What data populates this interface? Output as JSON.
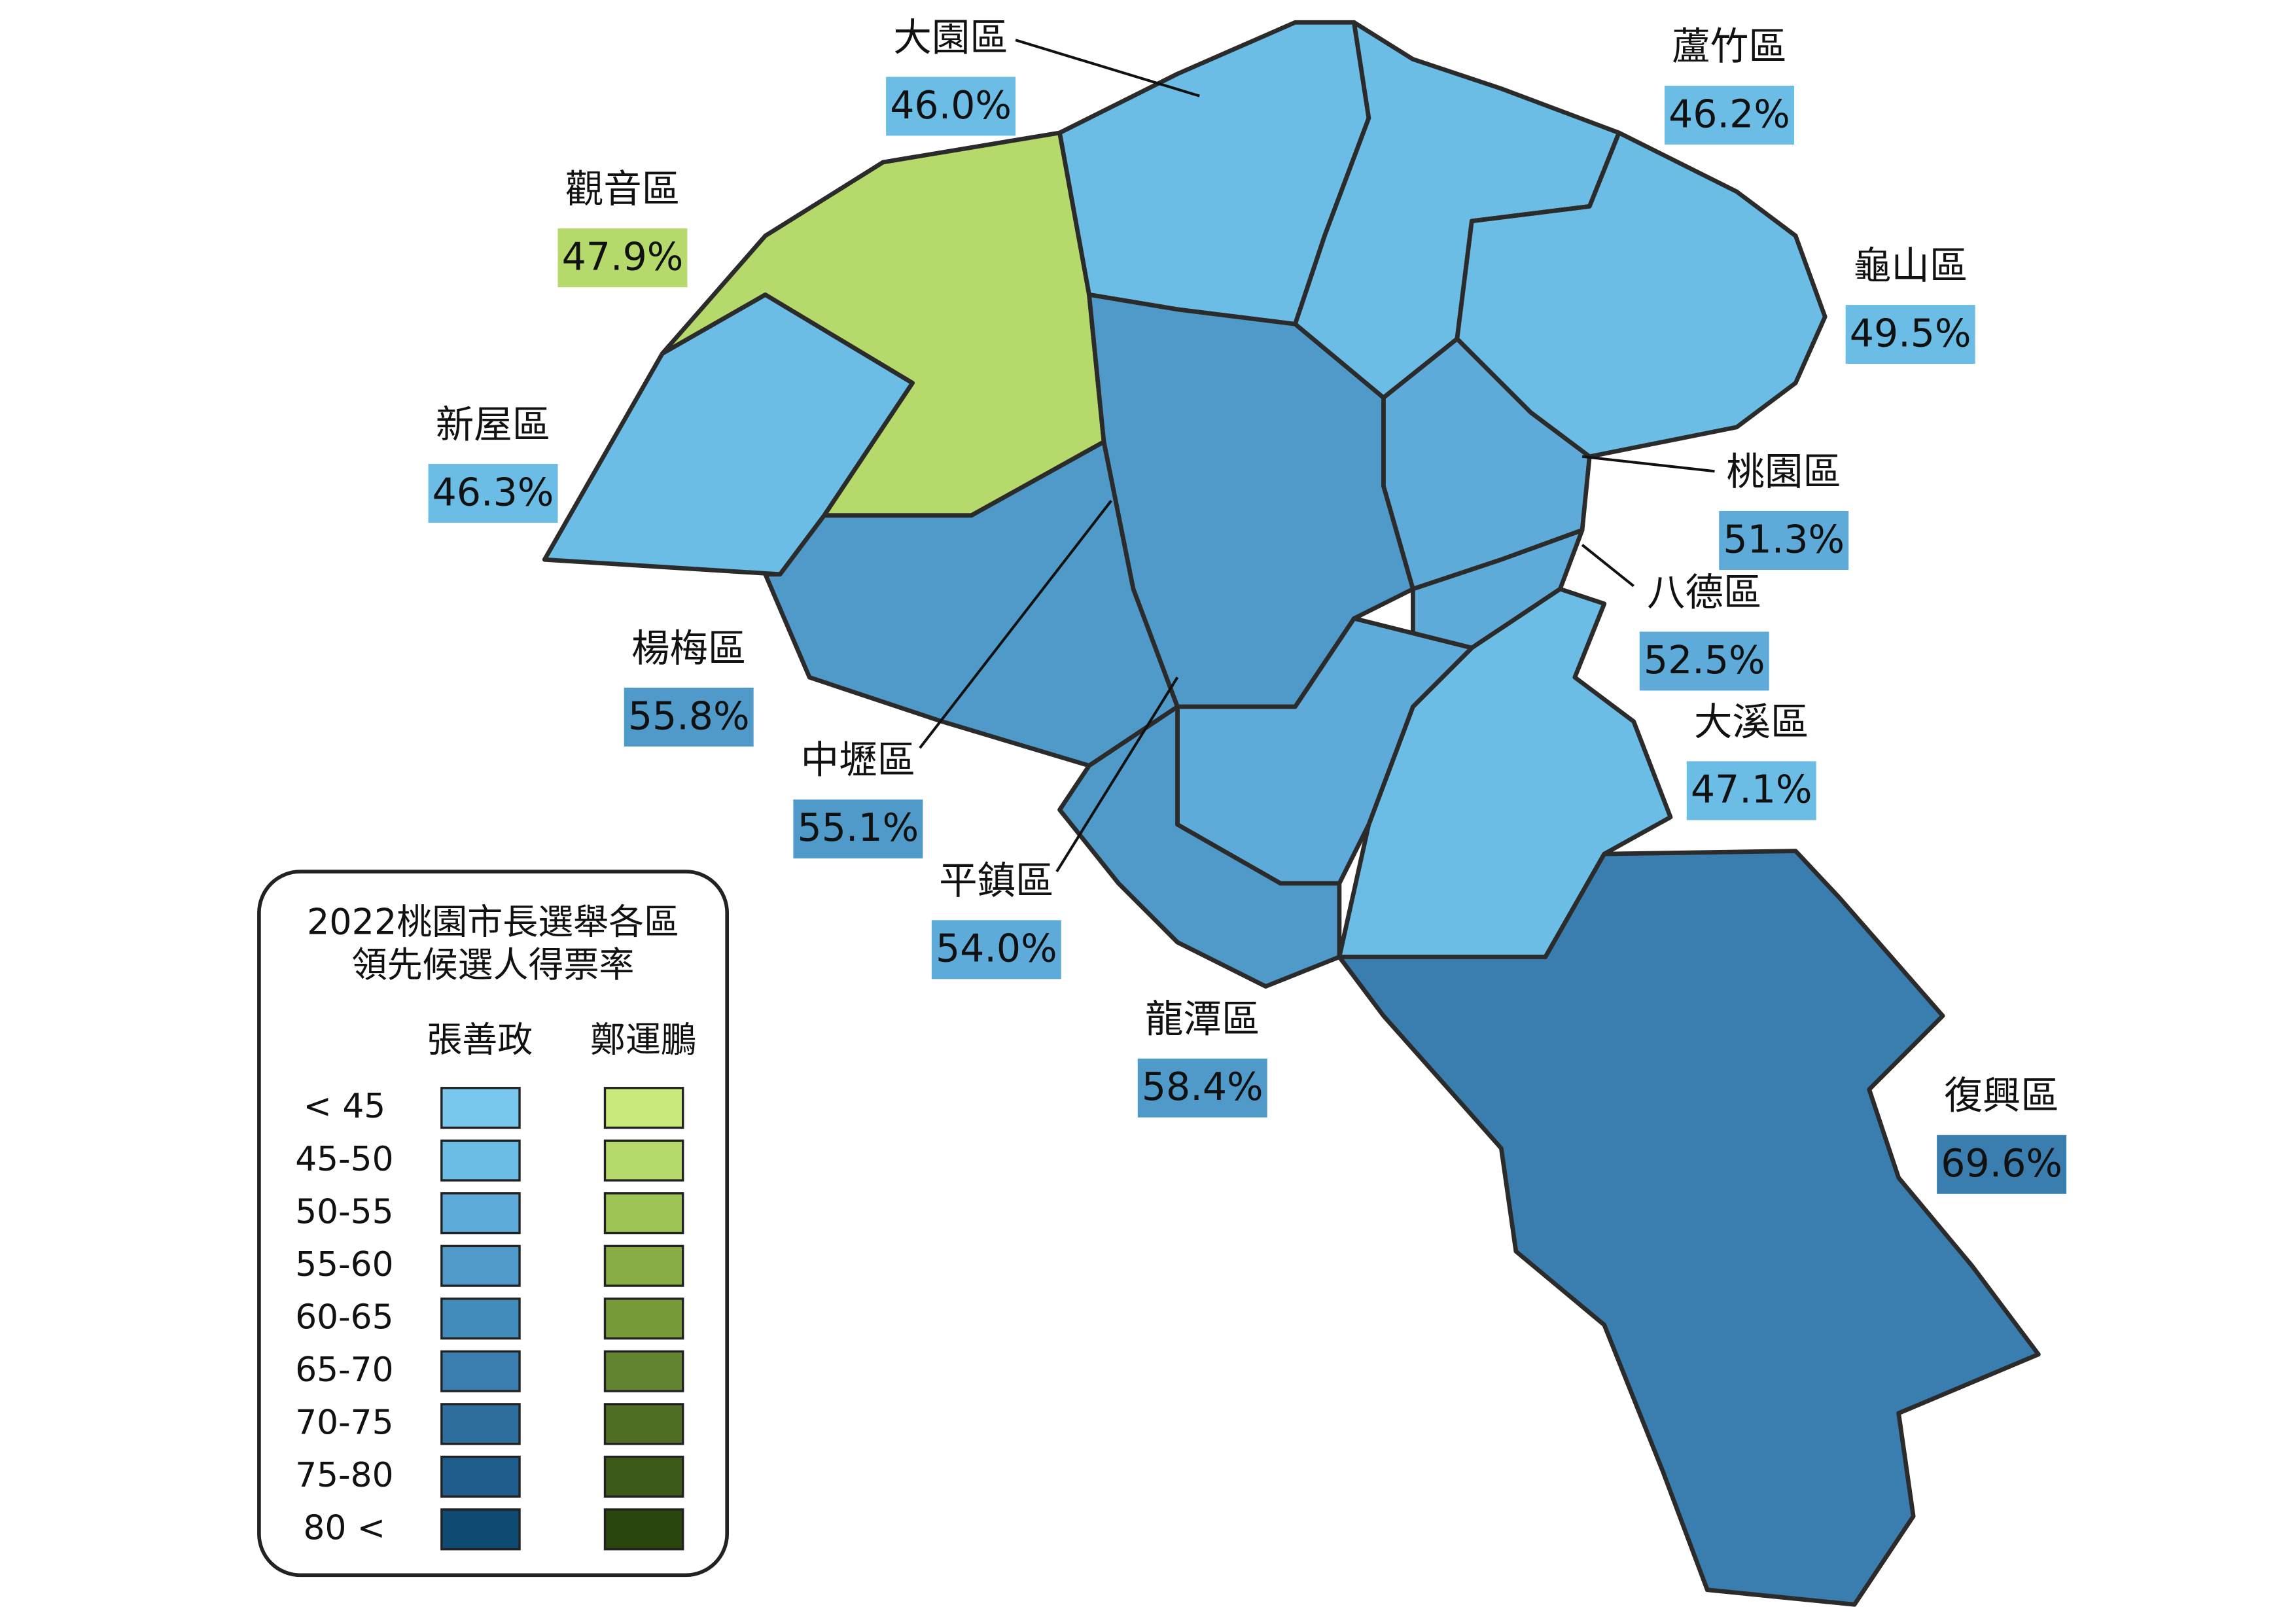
{
  "legend": {
    "title_lines": [
      "2022桃園市長選舉各區",
      "領先候選人得票率"
    ],
    "candidates": [
      {
        "name": "張善政",
        "colors": [
          "#7ac7ee",
          "#6bbde6",
          "#5eaad8",
          "#4f9ac9",
          "#428cbc",
          "#3a7eaf",
          "#2f6f9e",
          "#1f5e8c",
          "#0e4a72"
        ]
      },
      {
        "name": "鄭運鵬",
        "colors": [
          "#c8e87a",
          "#b6d96b",
          "#9fc456",
          "#89ad45",
          "#76993a",
          "#628430",
          "#4f6e24",
          "#3c5a18",
          "#2a450d"
        ]
      }
    ],
    "bins": [
      "< 45",
      "45-50",
      "50-55",
      "55-60",
      "60-65",
      "65-70",
      "70-75",
      "75-80",
      "80 <"
    ]
  },
  "districts": [
    {
      "name": "大園區",
      "share": "46.0%",
      "color": "#6bbde6"
    },
    {
      "name": "蘆竹區",
      "share": "46.2%",
      "color": "#6bbde6"
    },
    {
      "name": "觀音區",
      "share": "47.9%",
      "color": "#b6d96b"
    },
    {
      "name": "龜山區",
      "share": "49.5%",
      "color": "#6bbde6"
    },
    {
      "name": "新屋區",
      "share": "46.3%",
      "color": "#6bbde6"
    },
    {
      "name": "桃園區",
      "share": "51.3%",
      "color": "#5eaad8"
    },
    {
      "name": "八德區",
      "share": "52.5%",
      "color": "#5eaad8"
    },
    {
      "name": "楊梅區",
      "share": "55.8%",
      "color": "#4f9ac9"
    },
    {
      "name": "大溪區",
      "share": "47.1%",
      "color": "#6bbde6"
    },
    {
      "name": "中壢區",
      "share": "55.1%",
      "color": "#4f9ac9"
    },
    {
      "name": "平鎮區",
      "share": "54.0%",
      "color": "#5eaad8"
    },
    {
      "name": "龍潭區",
      "share": "58.4%",
      "color": "#4f9ac9"
    },
    {
      "name": "復興區",
      "share": "69.6%",
      "color": "#3a7eaf"
    }
  ]
}
